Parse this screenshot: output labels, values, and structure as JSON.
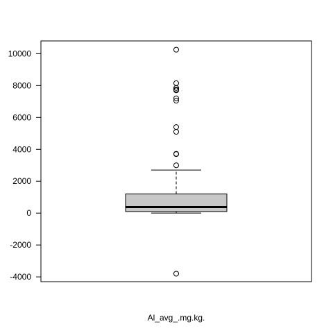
{
  "chart_data": {
    "type": "boxplot",
    "xlabel": "Al_avg_.mg.kg.",
    "ylabel": "",
    "ylim": [
      -4300,
      10800
    ],
    "yticks": [
      -4000,
      -2000,
      0,
      2000,
      4000,
      6000,
      8000,
      10000
    ],
    "ytick_labels": [
      "-4000",
      "-2000",
      "0",
      "2000",
      "4000",
      "6000",
      "8000",
      "10000"
    ],
    "grid": false,
    "box_fill": "#c8c8c8",
    "stats": {
      "whisker_low": 0,
      "q1": 100,
      "median": 380,
      "q3": 1200,
      "whisker_high": 2700
    },
    "outliers": [
      -3800,
      3000,
      3700,
      3720,
      5100,
      5400,
      7050,
      7200,
      7700,
      7750,
      7850,
      8150,
      10250
    ]
  }
}
